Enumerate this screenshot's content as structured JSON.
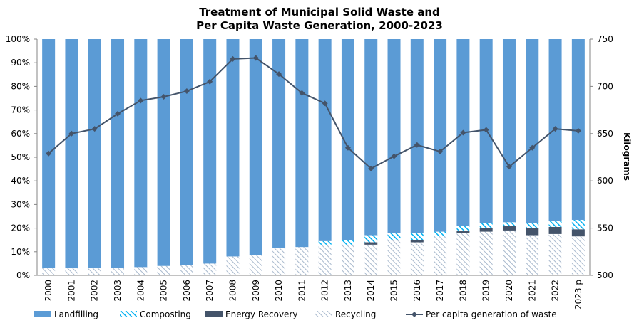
{
  "chart_data": {
    "type": "bar",
    "stacked": true,
    "title": [
      "Treatment of Municipal  Solid Waste and",
      "Per Capita Waste Generation, 2000-2023"
    ],
    "categories": [
      "2000",
      "2001",
      "2002",
      "2003",
      "2004",
      "2005",
      "2006",
      "2007",
      "2008",
      "2009",
      "2010",
      "2011",
      "2012",
      "2013",
      "2014",
      "2015",
      "2016",
      "2017",
      "2018",
      "2019",
      "2020",
      "2021",
      "2022",
      "2023 p"
    ],
    "ylim_left": [
      0,
      100
    ],
    "left_ticks": [
      "0%",
      "10%",
      "20%",
      "30%",
      "40%",
      "50%",
      "60%",
      "70%",
      "80%",
      "90%",
      "100%"
    ],
    "ylim_right": [
      500,
      750
    ],
    "right_ticks": [
      "500",
      "550",
      "600",
      "650",
      "700",
      "750"
    ],
    "ylabel_right": "Kilograms",
    "legend_position": "bottom",
    "series": [
      {
        "name": "Recycling",
        "kind": "bar",
        "pattern": "diagonal-hatch",
        "color": "#a8b9cd",
        "values": [
          3,
          3,
          3,
          3,
          3.5,
          4,
          4.5,
          5,
          8,
          8.5,
          11.5,
          12,
          13,
          13,
          13,
          15,
          14,
          16.5,
          18,
          18.5,
          19,
          17,
          17.5,
          16.5
        ]
      },
      {
        "name": "Energy Recovery",
        "kind": "bar",
        "pattern": "solid",
        "color": "#44546a",
        "values": [
          0,
          0,
          0,
          0,
          0,
          0,
          0,
          0,
          0,
          0,
          0,
          0,
          0,
          0,
          1,
          0,
          1,
          0,
          1,
          1.5,
          2,
          3,
          3,
          3
        ]
      },
      {
        "name": "Composting",
        "kind": "bar",
        "pattern": "stripe",
        "color": "#00b0f0",
        "values": [
          0,
          0,
          0,
          0,
          0,
          0,
          0,
          0,
          0,
          0,
          0,
          0,
          1.5,
          2,
          3,
          3,
          3,
          2,
          2,
          2,
          1.5,
          2,
          2.5,
          4
        ]
      },
      {
        "name": "Landfilling",
        "kind": "bar",
        "pattern": "solid",
        "color": "#5b9bd5",
        "values": [
          97,
          97,
          97,
          97,
          96.5,
          96,
          95.5,
          95,
          92,
          91.5,
          88.5,
          88,
          85.5,
          85,
          83,
          82,
          82,
          81.5,
          79,
          78,
          77.5,
          78,
          77,
          76.5
        ]
      },
      {
        "name": "Per capita generation of waste",
        "kind": "line",
        "axis": "right",
        "color": "#44546a",
        "values": [
          629,
          650,
          655,
          671,
          685,
          689,
          695,
          705,
          729,
          730,
          713,
          693,
          682,
          635,
          613,
          626,
          638,
          631,
          651,
          654,
          615,
          635,
          655,
          653
        ]
      }
    ],
    "legend_order": [
      "Landfilling",
      "Composting",
      "Energy Recovery",
      "Recycling",
      "Per capita generation of waste"
    ]
  }
}
